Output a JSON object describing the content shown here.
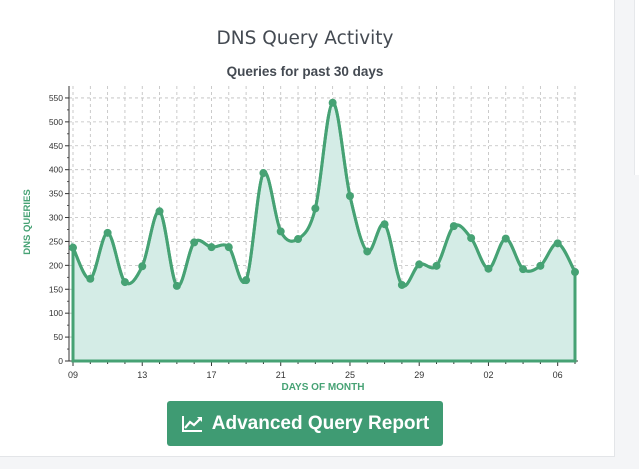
{
  "title": "DNS Query Activity",
  "button": {
    "label": "Advanced Query Report",
    "icon": "line-chart-icon"
  },
  "colors": {
    "accent": "#3f9b73",
    "line": "#46a274",
    "fill": "#d4ece6",
    "grid": "#bdbdbd"
  },
  "chart_data": {
    "type": "area",
    "title": "Queries for past 30 days",
    "xlabel": "DAYS OF MONTH",
    "ylabel": "DNS QUERIES",
    "ylim": [
      0,
      575
    ],
    "yticks": [
      0,
      50,
      100,
      150,
      200,
      250,
      300,
      350,
      400,
      450,
      500,
      550
    ],
    "xtick_labels": [
      "09",
      "13",
      "17",
      "21",
      "25",
      "29",
      "02",
      "06"
    ],
    "grid": true,
    "x": [
      "09",
      "10",
      "11",
      "12",
      "13",
      "14",
      "15",
      "16",
      "17",
      "18",
      "19",
      "20",
      "21",
      "22",
      "23",
      "24",
      "25",
      "26",
      "27",
      "28",
      "29",
      "30",
      "31",
      "01",
      "02",
      "03",
      "04",
      "05",
      "06",
      "07"
    ],
    "values": [
      237,
      172,
      268,
      165,
      198,
      313,
      157,
      248,
      238,
      238,
      169,
      393,
      271,
      255,
      319,
      540,
      345,
      229,
      286,
      159,
      202,
      199,
      282,
      257,
      193,
      256,
      192,
      199,
      246,
      186
    ]
  }
}
